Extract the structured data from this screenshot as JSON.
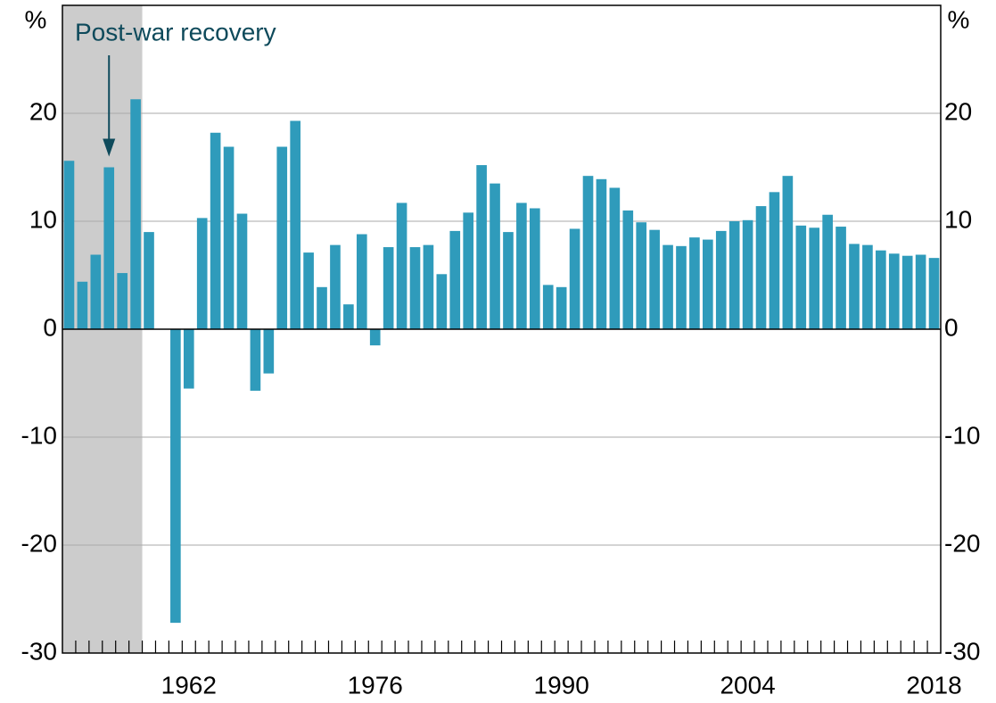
{
  "chart_data": {
    "type": "bar",
    "y_unit": "%",
    "categories": [
      null,
      null,
      null,
      null,
      null,
      null,
      null,
      null,
      null,
      "1962",
      null,
      null,
      null,
      null,
      null,
      null,
      null,
      null,
      null,
      null,
      null,
      null,
      null,
      "1976",
      null,
      null,
      null,
      null,
      null,
      null,
      null,
      null,
      null,
      null,
      null,
      null,
      null,
      "1990",
      null,
      null,
      null,
      null,
      null,
      null,
      null,
      null,
      null,
      null,
      null,
      null,
      null,
      "2004",
      null,
      null,
      null,
      null,
      null,
      null,
      null,
      null,
      null,
      null,
      null,
      null,
      null,
      "2018"
    ],
    "values": [
      15.6,
      4.4,
      6.9,
      15.0,
      5.2,
      21.3,
      9.0,
      0,
      -27.2,
      -5.5,
      10.3,
      18.2,
      16.9,
      10.7,
      -5.7,
      -4.1,
      16.9,
      19.3,
      7.1,
      3.9,
      7.8,
      2.3,
      8.8,
      -1.5,
      7.6,
      11.7,
      7.6,
      7.8,
      5.1,
      9.1,
      10.8,
      15.2,
      13.5,
      9.0,
      11.7,
      11.2,
      4.1,
      3.9,
      9.3,
      14.2,
      13.9,
      13.1,
      11.0,
      9.9,
      9.2,
      7.8,
      7.7,
      8.5,
      8.3,
      9.1,
      10.0,
      10.1,
      11.4,
      12.7,
      14.2,
      9.6,
      9.4,
      10.6,
      9.5,
      7.9,
      7.8,
      7.3,
      7.0,
      6.8,
      6.9,
      6.6
    ],
    "color": "#2f9bbb",
    "ylim": [
      -30,
      30
    ],
    "yticks": [
      -30,
      -20,
      -10,
      0,
      10,
      20
    ],
    "grid": true,
    "annotation": {
      "text": "Post-war recovery",
      "target_index": 3,
      "shade_indices": [
        0,
        5
      ],
      "shade_color": "#cccccc",
      "color": "#0e4a5b"
    }
  }
}
